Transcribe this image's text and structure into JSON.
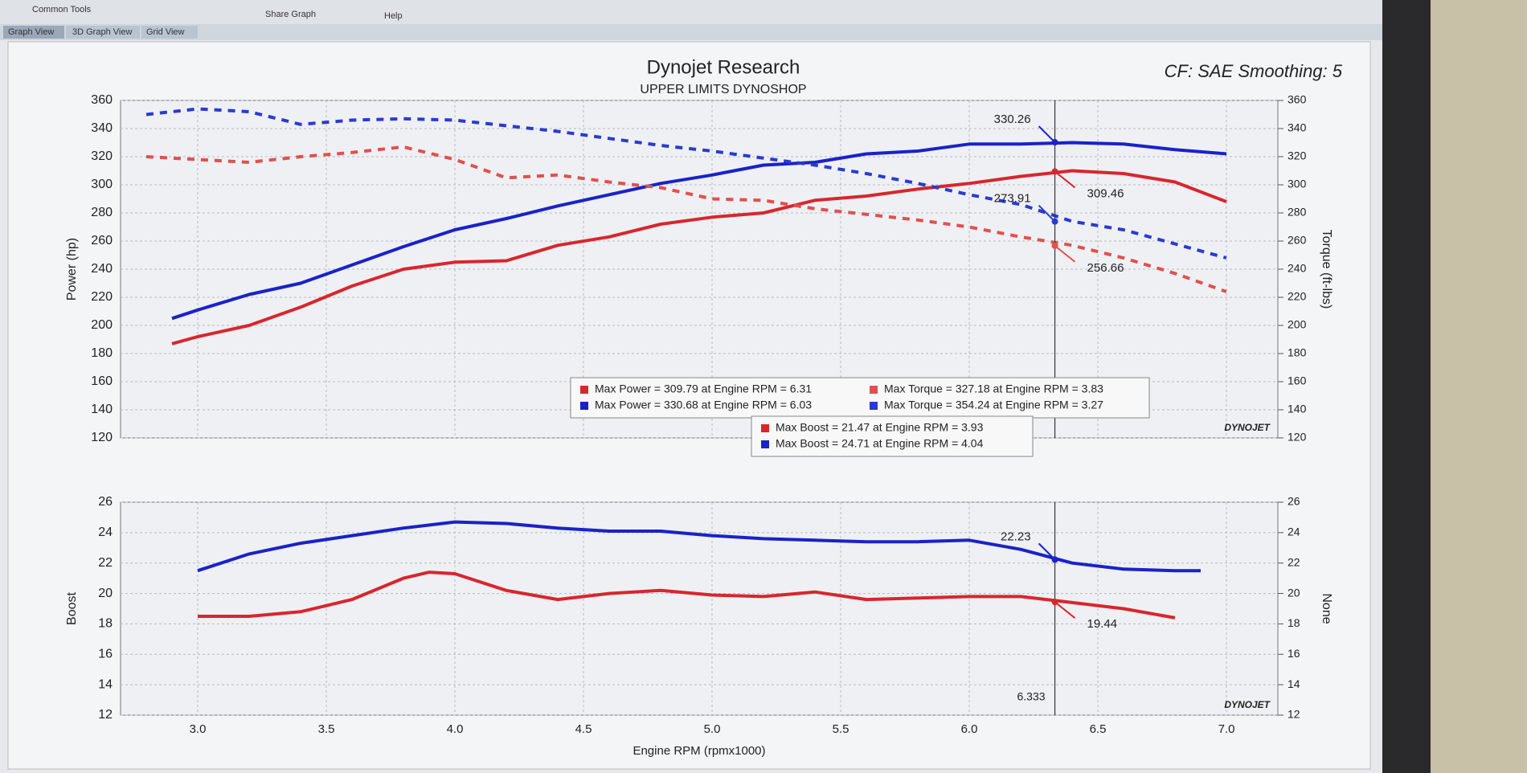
{
  "ui": {
    "menu": [
      "Common Tools",
      "Share Graph",
      "Help"
    ],
    "tabs": [
      "Graph View",
      "3D Graph View",
      "Grid View"
    ],
    "logo": "DYNOJET"
  },
  "chart_data": [
    {
      "type": "line",
      "title": "Dynojet Research",
      "subtitle": "UPPER LIMITS DYNOSHOP",
      "annotation": "CF: SAE Smoothing: 5",
      "ylabel": "Power (hp)",
      "y2label": "Torque (ft-lbs)",
      "xlim": [
        2.7,
        7.2
      ],
      "xticks": [
        3,
        3.5,
        4,
        4.5,
        5,
        5.5,
        6,
        6.5,
        7
      ],
      "ylim": [
        120,
        360
      ],
      "yticks": [
        120,
        140,
        160,
        180,
        200,
        220,
        240,
        260,
        280,
        300,
        320,
        340,
        360
      ],
      "y2lim": [
        120,
        360
      ],
      "y2ticks": [
        120,
        140,
        160,
        180,
        200,
        220,
        240,
        260,
        280,
        300,
        320,
        340,
        360
      ],
      "grid": true,
      "series": [
        {
          "color": "#1a22c8",
          "dash": false,
          "x": [
            2.9,
            3.0,
            3.2,
            3.4,
            3.6,
            3.8,
            4.0,
            4.2,
            4.4,
            4.6,
            4.8,
            5.0,
            5.2,
            5.4,
            5.6,
            5.8,
            6.0,
            6.2,
            6.4,
            6.6,
            6.8,
            7.0
          ],
          "values": [
            205,
            211,
            222,
            230,
            243,
            256,
            268,
            276,
            285,
            293,
            301,
            307,
            314,
            316,
            322,
            324,
            329,
            329,
            330,
            329,
            325,
            322
          ]
        },
        {
          "color": "#d8262e",
          "dash": false,
          "x": [
            2.9,
            3.0,
            3.2,
            3.4,
            3.6,
            3.8,
            4.0,
            4.2,
            4.4,
            4.6,
            4.8,
            5.0,
            5.2,
            5.4,
            5.6,
            5.8,
            6.0,
            6.2,
            6.4,
            6.6,
            6.8,
            7.0
          ],
          "values": [
            187,
            192,
            200,
            213,
            228,
            240,
            245,
            246,
            257,
            263,
            272,
            277,
            280,
            289,
            292,
            297,
            301,
            306,
            310,
            308,
            302,
            288
          ]
        },
        {
          "color": "#2a3ad0",
          "dash": true,
          "axis": "y2",
          "x": [
            2.8,
            3.0,
            3.2,
            3.4,
            3.6,
            3.8,
            4.0,
            4.2,
            4.4,
            4.6,
            4.8,
            5.0,
            5.2,
            5.4,
            5.6,
            5.8,
            6.0,
            6.2,
            6.4,
            6.6,
            6.8,
            7.0
          ],
          "values": [
            350,
            354,
            352,
            343,
            346,
            347,
            346,
            342,
            338,
            333,
            328,
            324,
            319,
            314,
            308,
            301,
            293,
            286,
            274,
            268,
            258,
            248
          ]
        },
        {
          "color": "#e0504f",
          "dash": true,
          "axis": "y2",
          "x": [
            2.8,
            3.0,
            3.2,
            3.4,
            3.6,
            3.8,
            4.0,
            4.2,
            4.4,
            4.6,
            4.8,
            5.0,
            5.2,
            5.4,
            5.6,
            5.8,
            6.0,
            6.2,
            6.4,
            6.6,
            6.8,
            7.0
          ],
          "values": [
            320,
            318,
            316,
            320,
            323,
            327,
            318,
            305,
            307,
            302,
            298,
            290,
            289,
            283,
            279,
            275,
            270,
            263,
            257,
            248,
            237,
            224
          ]
        }
      ],
      "readouts": [
        330.26,
        309.46,
        273.91,
        256.66
      ],
      "stats": [
        {
          "text": "Max Power = 309.79 at Engine RPM = 6.31",
          "color": "#d8262e"
        },
        {
          "text": "Max Torque = 327.18 at Engine RPM = 3.83",
          "color": "#e0504f"
        },
        {
          "text": "Max Power = 330.68 at Engine RPM = 6.03",
          "color": "#1a22c8"
        },
        {
          "text": "Max Torque = 354.24 at Engine RPM = 3.27",
          "color": "#2a3ad0"
        }
      ]
    },
    {
      "type": "line",
      "ylabel": "Boost",
      "y2label": "None",
      "xlabel": "Engine RPM (rpmx1000)",
      "xlim": [
        2.7,
        7.2
      ],
      "xticks": [
        {
          "value": 3,
          "label": "3.0"
        },
        3.5,
        {
          "value": 4,
          "label": "4.0"
        },
        4.5,
        {
          "value": 5,
          "label": "5.0"
        },
        5.5,
        {
          "value": 6,
          "label": "6.0"
        },
        6.5,
        {
          "value": 7,
          "label": "7.0"
        }
      ],
      "ylim": [
        12,
        26
      ],
      "yticks": [
        12,
        14,
        16,
        18,
        20,
        22,
        24,
        26
      ],
      "y2lim": [
        12,
        26
      ],
      "y2ticks": [
        12,
        14,
        16,
        18,
        20,
        22,
        24,
        26
      ],
      "grid": true,
      "cursor_x": 6.333,
      "series": [
        {
          "color": "#1a22c8",
          "dash": false,
          "x": [
            3.0,
            3.2,
            3.4,
            3.6,
            3.8,
            4.0,
            4.2,
            4.4,
            4.6,
            4.8,
            5.0,
            5.2,
            5.4,
            5.6,
            5.8,
            6.0,
            6.2,
            6.4,
            6.6,
            6.8,
            6.9
          ],
          "values": [
            21.5,
            22.6,
            23.3,
            23.8,
            24.3,
            24.7,
            24.6,
            24.3,
            24.1,
            24.1,
            23.8,
            23.6,
            23.5,
            23.4,
            23.4,
            23.5,
            22.9,
            22.0,
            21.6,
            21.5,
            21.5
          ]
        },
        {
          "color": "#d8262e",
          "dash": false,
          "x": [
            3.0,
            3.2,
            3.4,
            3.6,
            3.8,
            3.9,
            4.0,
            4.2,
            4.4,
            4.6,
            4.8,
            5.0,
            5.2,
            5.4,
            5.6,
            5.8,
            6.0,
            6.2,
            6.4,
            6.6,
            6.8
          ],
          "values": [
            18.5,
            18.5,
            18.8,
            19.6,
            21.0,
            21.4,
            21.3,
            20.2,
            19.6,
            20.0,
            20.2,
            19.9,
            19.8,
            20.1,
            19.6,
            19.7,
            19.8,
            19.8,
            19.4,
            19.0,
            18.4
          ]
        }
      ],
      "readouts": [
        22.23,
        19.44
      ],
      "stats": [
        {
          "text": "Max Boost = 21.47 at Engine RPM = 3.93",
          "color": "#d8262e"
        },
        {
          "text": "Max Boost = 24.71 at Engine RPM = 4.04",
          "color": "#1a22c8"
        }
      ]
    }
  ]
}
